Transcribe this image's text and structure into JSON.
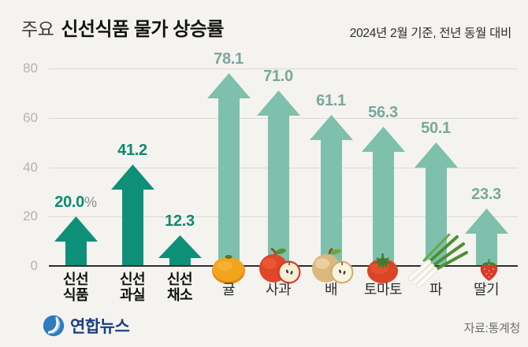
{
  "header": {
    "title_prefix": "주요",
    "title_main": "신선식품 물가 상승률",
    "subtitle": "2024년 2월 기준, 전년 동월 대비"
  },
  "chart_data": {
    "type": "bar",
    "variant": "upward-arrow pictogram bars",
    "title": "주요 신선식품 물가 상승률",
    "subtitle": "2024년 2월 기준, 전년 동월 대비",
    "unit": "%",
    "ylim": [
      0,
      80
    ],
    "yticks": [
      0,
      20,
      40,
      60,
      80
    ],
    "grid": true,
    "legend": "none",
    "categories": [
      "신선식품",
      "신선과실",
      "신선채소",
      "귤",
      "사과",
      "배",
      "토마토",
      "파",
      "딸기"
    ],
    "values": [
      20.0,
      41.2,
      12.3,
      78.1,
      71.0,
      61.1,
      56.3,
      50.1,
      23.3
    ],
    "value_labels": [
      "20.0%",
      "41.2",
      "12.3",
      "78.1",
      "71.0",
      "61.1",
      "56.3",
      "50.1",
      "23.3"
    ],
    "series_groups": [
      "index",
      "index",
      "index",
      "item",
      "item",
      "item",
      "item",
      "item",
      "item"
    ],
    "label_lines": [
      [
        "신선",
        "식품"
      ],
      [
        "신선",
        "과실"
      ],
      [
        "신선",
        "채소"
      ],
      [
        "귤"
      ],
      [
        "사과"
      ],
      [
        "배"
      ],
      [
        "토마토"
      ],
      [
        "파"
      ],
      [
        "딸기"
      ]
    ],
    "icons": [
      null,
      null,
      null,
      "tangerine-icon",
      "apple-icon",
      "pear-icon",
      "tomato-icon",
      "green-onion-icon",
      "strawberry-icon"
    ],
    "colors": {
      "index_arrow": "#0e9078",
      "index_value_text": "#0b8a72",
      "item_arrow": "#7ec0ac",
      "item_value_text": "#7aa79d",
      "percent_sign": "#8c8c8c",
      "axis_line": "#2e2e2e",
      "grid_line": "#dcdad6",
      "tick_text": "#b5b2ae"
    },
    "source": "자료:통계청"
  },
  "footer": {
    "logo_text": "연합뉴스",
    "source": "자료:통계청"
  }
}
